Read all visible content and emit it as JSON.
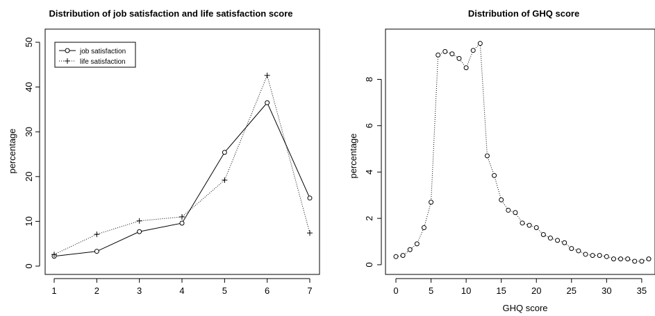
{
  "chart_data": [
    {
      "type": "line",
      "title": "Distribution of job satisfaction and life satisfaction score",
      "xlabel": "",
      "ylabel": "percentage",
      "xlim": [
        1,
        7
      ],
      "ylim": [
        0,
        50
      ],
      "x_ticks": [
        "1",
        "2",
        "3",
        "4",
        "5",
        "6",
        "7"
      ],
      "y_ticks": [
        "0",
        "10",
        "20",
        "30",
        "40",
        "50"
      ],
      "grid": false,
      "legend_position": "top-left",
      "x": [
        1,
        2,
        3,
        4,
        5,
        6,
        7
      ],
      "series": [
        {
          "name": "job satisfaction",
          "values": [
            2.2,
            3.3,
            7.7,
            9.6,
            25.4,
            36.5,
            15.2
          ],
          "marker": "circle",
          "line_style": "solid",
          "color": "#000000"
        },
        {
          "name": "life satisfaction",
          "values": [
            2.6,
            7.1,
            10.1,
            11.0,
            19.2,
            42.6,
            7.4
          ],
          "marker": "plus",
          "line_style": "dotted",
          "color": "#000000"
        }
      ]
    },
    {
      "type": "line",
      "title": "Distribution of GHQ score",
      "xlabel": "GHQ score",
      "ylabel": "percentage",
      "xlim": [
        0,
        36
      ],
      "ylim": [
        0,
        9.6
      ],
      "x_ticks": [
        "0",
        "5",
        "10",
        "15",
        "20",
        "25",
        "30",
        "35"
      ],
      "y_ticks": [
        "0",
        "2",
        "4",
        "6",
        "8"
      ],
      "grid": false,
      "x": [
        0,
        1,
        2,
        3,
        4,
        5,
        6,
        7,
        8,
        9,
        10,
        11,
        12,
        13,
        14,
        15,
        16,
        17,
        18,
        19,
        20,
        21,
        22,
        23,
        24,
        25,
        26,
        27,
        28,
        29,
        30,
        31,
        32,
        33,
        34,
        35,
        36
      ],
      "series": [
        {
          "values": [
            0.35,
            0.4,
            0.65,
            0.9,
            1.6,
            2.7,
            9.05,
            9.2,
            9.1,
            8.9,
            8.5,
            9.25,
            9.55,
            4.7,
            3.85,
            2.8,
            2.35,
            2.25,
            1.8,
            1.7,
            1.6,
            1.3,
            1.15,
            1.05,
            0.95,
            0.7,
            0.6,
            0.45,
            0.4,
            0.4,
            0.35,
            0.25,
            0.25,
            0.25,
            0.15,
            0.15,
            0.25
          ],
          "marker": "circle",
          "line_style": "dotted",
          "color": "#000000"
        }
      ]
    }
  ]
}
